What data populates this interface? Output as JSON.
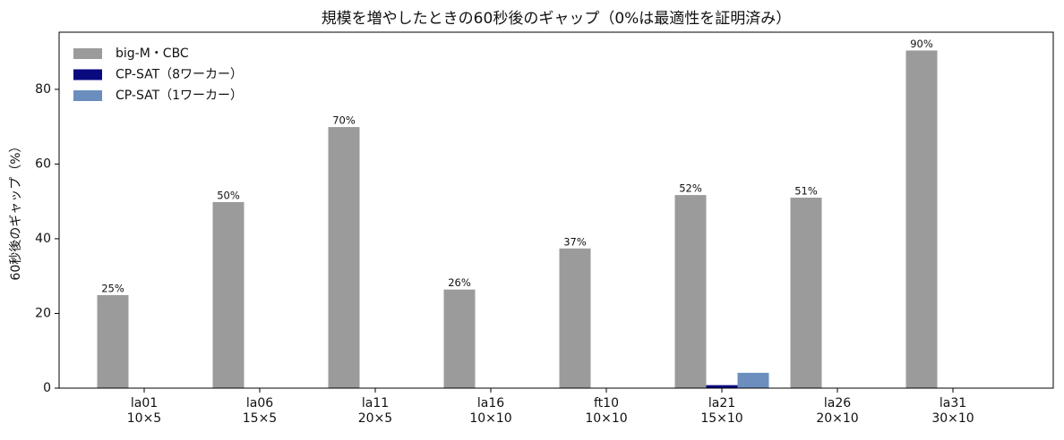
{
  "chart_data": {
    "type": "bar",
    "title": "規模を増やしたときの60秒後のギャップ（0%は最適性を証明済み）",
    "y_label": "60秒後のギャップ（%）",
    "categories": [
      [
        "la01",
        "10×5"
      ],
      [
        "la06",
        "15×5"
      ],
      [
        "la11",
        "20×5"
      ],
      [
        "la16",
        "10×10"
      ],
      [
        "ft10",
        "10×10"
      ],
      [
        "la21",
        "15×10"
      ],
      [
        "la26",
        "20×10"
      ],
      [
        "la31",
        "30×10"
      ]
    ],
    "series": [
      {
        "name": "big-M・CBC",
        "color": "#9b9b9b",
        "values": [
          24.9,
          49.8,
          69.9,
          26.4,
          37.4,
          51.7,
          51.0,
          90.4
        ],
        "value_labels": [
          "25%",
          "50%",
          "70%",
          "26%",
          "37%",
          "52%",
          "51%",
          "90%"
        ]
      },
      {
        "name": "CP-SAT（8ワーカー）",
        "color": "#0a0a80",
        "values": [
          0,
          0,
          0,
          0,
          0,
          0.8,
          0,
          0
        ]
      },
      {
        "name": "CP-SAT（1ワーカー）",
        "color": "#6b8ebf",
        "values": [
          0,
          0,
          0,
          0,
          0,
          4.1,
          0,
          0
        ]
      }
    ],
    "ylim": [
      0,
      95.3
    ],
    "yticks": [
      0,
      20,
      40,
      60,
      80
    ],
    "grid": false,
    "legend": "upper left"
  }
}
